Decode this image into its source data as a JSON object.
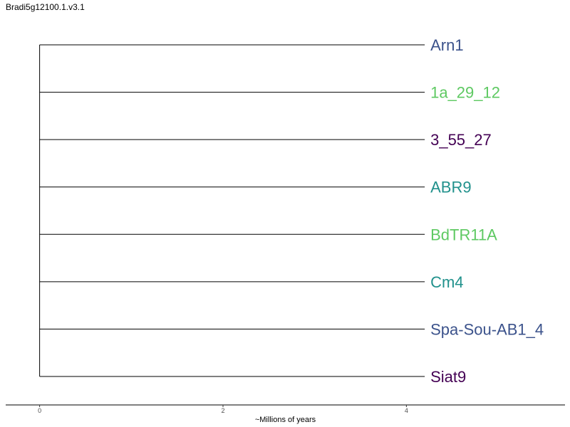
{
  "title": "Bradi5g12100.1.v3.1",
  "chart_data": {
    "type": "phylogenetic-tree",
    "layout": "rectangular",
    "root_x": 0,
    "tips": [
      {
        "label": "Arn1",
        "branch_length": 4.2,
        "color": "#3b528b"
      },
      {
        "label": "1a_29_12",
        "branch_length": 4.2,
        "color": "#5ec962"
      },
      {
        "label": "3_55_27",
        "branch_length": 4.2,
        "color": "#440154"
      },
      {
        "label": "ABR9",
        "branch_length": 4.2,
        "color": "#21918c"
      },
      {
        "label": "BdTR11A",
        "branch_length": 4.2,
        "color": "#5ec962"
      },
      {
        "label": "Cm4",
        "branch_length": 4.2,
        "color": "#21918c"
      },
      {
        "label": "Spa-Sou-AB1_4",
        "branch_length": 4.2,
        "color": "#3b528b"
      },
      {
        "label": "Siat9",
        "branch_length": 4.2,
        "color": "#440154"
      }
    ],
    "x_axis": {
      "label": "~Millions of years",
      "ticks": [
        0,
        2,
        4
      ],
      "range": [
        -0.37,
        5.73
      ]
    }
  }
}
